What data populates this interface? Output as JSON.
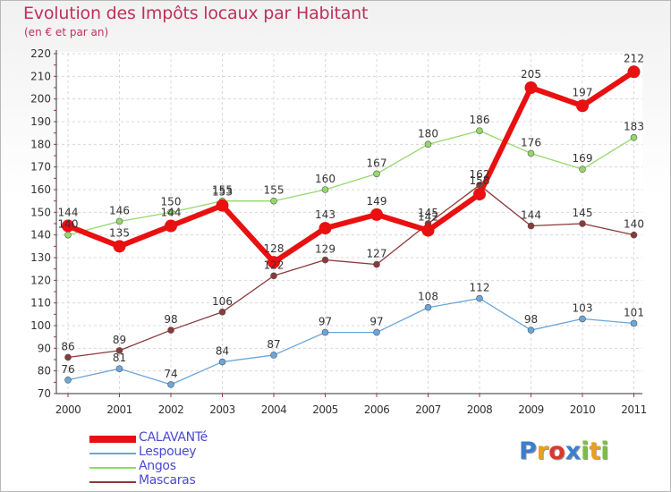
{
  "chart_data": {
    "type": "line",
    "title": "Evolution des Impôts locaux par Habitant",
    "subtitle": "(en € et par an)",
    "xlabel": "",
    "ylabel": "",
    "x": [
      "2000",
      "2001",
      "2002",
      "2003",
      "2004",
      "2005",
      "2006",
      "2007",
      "2008",
      "2009",
      "2010",
      "2011"
    ],
    "ylim": [
      70,
      220
    ],
    "yticks": [
      70,
      80,
      90,
      100,
      110,
      120,
      130,
      140,
      150,
      160,
      170,
      180,
      190,
      200,
      210,
      220
    ],
    "grid": true,
    "legend_position": "bottom-left",
    "series": [
      {
        "name": "Lespouey",
        "color": "#6aa6d9",
        "values": [
          76,
          81,
          74,
          84,
          87,
          97,
          97,
          108,
          112,
          98,
          103,
          101
        ]
      },
      {
        "name": "Angos",
        "color": "#95d86a",
        "values": [
          140,
          146,
          150,
          155,
          155,
          160,
          167,
          180,
          186,
          176,
          169,
          183
        ]
      },
      {
        "name": "Mascaras",
        "color": "#8a3a3a",
        "values": [
          86,
          89,
          98,
          106,
          122,
          129,
          127,
          145,
          162,
          144,
          145,
          140
        ]
      },
      {
        "name": "CALAVANTé",
        "color": "#e81010",
        "values": [
          144,
          135,
          144,
          153,
          128,
          143,
          149,
          142,
          158,
          205,
          197,
          212
        ]
      }
    ],
    "legend": [
      {
        "name": "CALAVANTé",
        "color": "#e81010"
      },
      {
        "name": "Lespouey",
        "color": "#6aa6d9"
      },
      {
        "name": "Angos",
        "color": "#95d86a"
      },
      {
        "name": "Mascaras",
        "color": "#8a3a3a"
      }
    ]
  },
  "logo": {
    "letters": [
      {
        "ch": "P",
        "color": "#3a7fd0"
      },
      {
        "ch": "r",
        "color": "#e8a020"
      },
      {
        "ch": "o",
        "color": "#d83a2a"
      },
      {
        "ch": "x",
        "color": "#3a7fd0"
      },
      {
        "ch": "i",
        "color": "#7ac040"
      },
      {
        "ch": "t",
        "color": "#e8a020"
      },
      {
        "ch": "i",
        "color": "#7ac040"
      }
    ]
  }
}
